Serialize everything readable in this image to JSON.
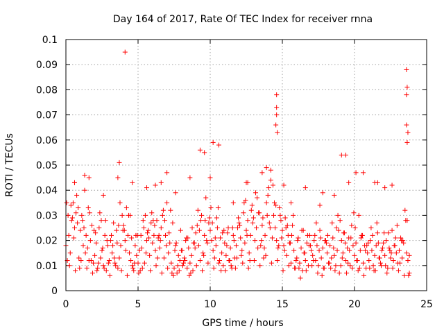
{
  "chart_data": {
    "type": "scatter",
    "title": "Day 164 of 2017, Rate Of TEC Index for receiver rnna",
    "xlabel": "GPS time / hours",
    "ylabel": "ROTI / TECUs",
    "xlim": [
      0,
      25
    ],
    "ylim": [
      0,
      0.1
    ],
    "xticks": [
      0,
      5,
      10,
      15,
      20,
      25
    ],
    "xtick_labels": [
      "0",
      "5",
      "10",
      "15",
      "20",
      "25"
    ],
    "yticks": [
      0,
      0.01,
      0.02,
      0.03,
      0.04,
      0.05,
      0.06,
      0.07,
      0.08,
      0.09,
      0.1
    ],
    "ytick_labels": [
      "0",
      "0.01",
      "0.02",
      "0.03",
      "0.04",
      "0.05",
      "0.06",
      "0.07",
      "0.08",
      "0.09",
      "0.1"
    ],
    "grid": true,
    "marker": "+",
    "color": "#ff0000",
    "series": [
      {
        "x": [
          0.0,
          0.1,
          0.2,
          0.3,
          0.4,
          0.5,
          0.6,
          0.7,
          0.8,
          0.9,
          1.0,
          1.1,
          1.2,
          1.3,
          1.4,
          1.5,
          1.6,
          1.7,
          1.8,
          1.9,
          2.0,
          2.1,
          2.2,
          2.3,
          2.4,
          2.5,
          2.6,
          2.7,
          2.8,
          2.9,
          3.0,
          3.1,
          3.2,
          3.3,
          3.4,
          3.5,
          3.6,
          3.7,
          3.8,
          3.9,
          4.0,
          4.1,
          4.2,
          4.3,
          4.4,
          4.5,
          4.6,
          4.7,
          4.8,
          4.9,
          5.0,
          5.1,
          5.2,
          5.3,
          5.4,
          5.5,
          5.6,
          5.7,
          5.8,
          5.9,
          6.0,
          6.1,
          6.2,
          6.3,
          6.4,
          6.5,
          6.6,
          6.7,
          6.8,
          6.9,
          7.0,
          7.1,
          7.2,
          7.3,
          7.4,
          7.5,
          7.6,
          7.7,
          7.8,
          7.9,
          8.0,
          8.1,
          8.2,
          8.3,
          8.4,
          8.5,
          8.6,
          8.7,
          8.8,
          8.9,
          9.0,
          9.1,
          9.2,
          9.3,
          9.4,
          9.5,
          9.6,
          9.7,
          9.8,
          9.9,
          10.0,
          10.1,
          10.2,
          10.3,
          10.4,
          10.5,
          10.6,
          10.7,
          10.8,
          10.9,
          11.0,
          11.1,
          11.2,
          11.3,
          11.4,
          11.5,
          11.6,
          11.7,
          11.8,
          11.9,
          12.0,
          12.1,
          12.2,
          12.3,
          12.4,
          12.5,
          12.6,
          12.7,
          12.8,
          12.9,
          13.0,
          13.1,
          13.2,
          13.3,
          13.4,
          13.5,
          13.6,
          13.7,
          13.8,
          13.9,
          14.0,
          14.1,
          14.2,
          14.3,
          14.4,
          14.5,
          14.6,
          14.7,
          14.8,
          14.9,
          15.0,
          15.1,
          15.2,
          15.3,
          15.4,
          15.5,
          15.6,
          15.7,
          15.8,
          15.9,
          16.0,
          16.1,
          16.2,
          16.3,
          16.4,
          16.5,
          16.6,
          16.7,
          16.8,
          16.9,
          17.0,
          17.1,
          17.2,
          17.3,
          17.4,
          17.5,
          17.6,
          17.7,
          17.8,
          17.9,
          18.0,
          18.1,
          18.2,
          18.3,
          18.4,
          18.5,
          18.6,
          18.7,
          18.8,
          18.9,
          19.0,
          19.1,
          19.2,
          19.3,
          19.4,
          19.5,
          19.6,
          19.7,
          19.8,
          19.9,
          20.0,
          20.1,
          20.2,
          20.3,
          20.4,
          20.5,
          20.6,
          20.7,
          20.8,
          20.9,
          21.0,
          21.1,
          21.2,
          21.3,
          21.4,
          21.5,
          21.6,
          21.7,
          21.8,
          21.9,
          22.0,
          22.1,
          22.2,
          22.3,
          22.4,
          22.5,
          22.6,
          22.7,
          22.8,
          22.9,
          23.0,
          23.1,
          23.2,
          23.3,
          23.4,
          23.5,
          23.6,
          23.7,
          23.8,
          0.15,
          0.35,
          0.55,
          0.75,
          0.95,
          1.15,
          1.35,
          1.55,
          1.75,
          1.95,
          2.15,
          2.35,
          2.55,
          2.75,
          2.95,
          3.15,
          3.35,
          3.55,
          3.75,
          3.95,
          4.15,
          4.35,
          4.55,
          4.75,
          4.95,
          5.15,
          5.35,
          5.55,
          5.75,
          5.95,
          6.15,
          6.35,
          6.55,
          6.75,
          6.95,
          7.15,
          7.35,
          7.55,
          7.75,
          7.95,
          8.15,
          8.35,
          8.55,
          8.75,
          8.95,
          9.15,
          9.35,
          9.55,
          9.75,
          9.95,
          10.15,
          10.35,
          10.55,
          10.75,
          10.95,
          11.15,
          11.35,
          11.55,
          11.75,
          11.95,
          12.15,
          12.35,
          12.55,
          12.75,
          12.95,
          13.15,
          13.35,
          13.55,
          13.75,
          13.95,
          14.15,
          14.35,
          14.55,
          14.75,
          14.95,
          15.15,
          15.35,
          15.55,
          15.75,
          15.95,
          16.15,
          16.35,
          16.55,
          16.75,
          16.95,
          17.15,
          17.35,
          17.55,
          17.75,
          17.95,
          18.15,
          18.35,
          18.55,
          18.75,
          18.95,
          19.15,
          19.35,
          19.55,
          19.75,
          19.95,
          20.15,
          20.35,
          20.55,
          20.75,
          20.95,
          21.15,
          21.35,
          21.55,
          21.75,
          21.95,
          22.15,
          22.35,
          22.55,
          22.75,
          22.95,
          23.15,
          23.35,
          23.55,
          23.75,
          0.25,
          0.65,
          1.05,
          1.45,
          1.85,
          2.25,
          2.65,
          3.05,
          3.45,
          3.85,
          4.25,
          4.65,
          5.05,
          5.45,
          5.85,
          6.25,
          6.65,
          7.05,
          7.45,
          7.85,
          8.25,
          8.65,
          9.05,
          9.45,
          9.85,
          10.25,
          10.65,
          11.05,
          11.45,
          11.85,
          12.25,
          12.65,
          13.05,
          13.45,
          13.85,
          14.25,
          14.65,
          15.05,
          15.45,
          15.85,
          16.25,
          16.65,
          17.05,
          17.45,
          17.85,
          18.25,
          18.65,
          19.05,
          19.45,
          19.85,
          20.25,
          20.65,
          21.05,
          21.45,
          21.85,
          22.25,
          22.65,
          23.05,
          23.45,
          23.8,
          0.05,
          0.45,
          0.85,
          1.25,
          1.65,
          2.05,
          2.45,
          2.85,
          3.25,
          3.65,
          4.05,
          4.45,
          4.85,
          5.25,
          5.65,
          6.05,
          6.45,
          6.85,
          7.25,
          7.65,
          8.05,
          8.45,
          8.85,
          9.25,
          9.65,
          10.05,
          10.45,
          10.85,
          11.25,
          11.65,
          12.05,
          12.45,
          12.85,
          13.25,
          13.65,
          14.05,
          14.45,
          14.85,
          15.25,
          15.65,
          16.05,
          16.45,
          16.85,
          17.25,
          17.65,
          18.05,
          18.45,
          18.85,
          19.25,
          19.65,
          20.05,
          20.45,
          20.85,
          21.25,
          21.65,
          22.05,
          22.45,
          22.85,
          23.25,
          23.65,
          0.6,
          1.6,
          2.6,
          3.6,
          4.6,
          5.6,
          6.6,
          7.6,
          8.6,
          9.6,
          10.6,
          11.6,
          12.6,
          13.6,
          14.6,
          15.6,
          16.6,
          17.6,
          18.6,
          19.6,
          20.6,
          21.6,
          22.6,
          23.6,
          4.1,
          23.6,
          23.65,
          14.6,
          14.55,
          14.6,
          14.65,
          9.3,
          10.0,
          10.2,
          3.7,
          19.1,
          19.4,
          23.6,
          23.65,
          23.7,
          7.0,
          6.2,
          1.3,
          0.6,
          12.5,
          13.9,
          14.2,
          15.1,
          17.8,
          21.4,
          22.1,
          20.1
        ],
        "y": [
          0.018,
          0.012,
          0.022,
          0.015,
          0.028,
          0.035,
          0.025,
          0.031,
          0.027,
          0.013,
          0.024,
          0.03,
          0.018,
          0.04,
          0.022,
          0.017,
          0.012,
          0.02,
          0.026,
          0.011,
          0.014,
          0.019,
          0.009,
          0.025,
          0.013,
          0.016,
          0.01,
          0.022,
          0.008,
          0.018,
          0.012,
          0.02,
          0.015,
          0.027,
          0.011,
          0.024,
          0.009,
          0.013,
          0.018,
          0.03,
          0.026,
          0.02,
          0.033,
          0.022,
          0.015,
          0.012,
          0.01,
          0.008,
          0.018,
          0.014,
          0.011,
          0.016,
          0.022,
          0.009,
          0.025,
          0.03,
          0.02,
          0.024,
          0.014,
          0.027,
          0.019,
          0.022,
          0.016,
          0.028,
          0.021,
          0.017,
          0.025,
          0.03,
          0.013,
          0.022,
          0.035,
          0.015,
          0.019,
          0.011,
          0.027,
          0.009,
          0.018,
          0.007,
          0.014,
          0.012,
          0.016,
          0.01,
          0.013,
          0.02,
          0.009,
          0.017,
          0.011,
          0.014,
          0.008,
          0.019,
          0.023,
          0.026,
          0.018,
          0.012,
          0.03,
          0.015,
          0.022,
          0.037,
          0.019,
          0.027,
          0.024,
          0.02,
          0.016,
          0.013,
          0.018,
          0.025,
          0.011,
          0.021,
          0.015,
          0.01,
          0.019,
          0.014,
          0.023,
          0.012,
          0.017,
          0.009,
          0.022,
          0.013,
          0.018,
          0.025,
          0.027,
          0.021,
          0.016,
          0.031,
          0.019,
          0.024,
          0.028,
          0.015,
          0.022,
          0.034,
          0.029,
          0.02,
          0.025,
          0.017,
          0.031,
          0.018,
          0.026,
          0.013,
          0.022,
          0.035,
          0.038,
          0.027,
          0.044,
          0.021,
          0.03,
          0.025,
          0.02,
          0.017,
          0.033,
          0.028,
          0.024,
          0.018,
          0.029,
          0.014,
          0.022,
          0.019,
          0.011,
          0.026,
          0.016,
          0.009,
          0.013,
          0.021,
          0.011,
          0.017,
          0.008,
          0.015,
          0.012,
          0.019,
          0.01,
          0.022,
          0.016,
          0.014,
          0.02,
          0.012,
          0.018,
          0.01,
          0.024,
          0.013,
          0.017,
          0.009,
          0.02,
          0.015,
          0.011,
          0.018,
          0.013,
          0.021,
          0.014,
          0.01,
          0.016,
          0.024,
          0.028,
          0.02,
          0.015,
          0.023,
          0.012,
          0.017,
          0.021,
          0.01,
          0.026,
          0.018,
          0.014,
          0.019,
          0.012,
          0.03,
          0.016,
          0.022,
          0.011,
          0.018,
          0.009,
          0.015,
          0.012,
          0.02,
          0.016,
          0.01,
          0.014,
          0.018,
          0.023,
          0.013,
          0.011,
          0.016,
          0.019,
          0.014,
          0.02,
          0.009,
          0.017,
          0.013,
          0.024,
          0.012,
          0.018,
          0.015,
          0.011,
          0.016,
          0.021,
          0.013,
          0.019,
          0.032,
          0.015,
          0.012,
          0.014,
          0.03,
          0.034,
          0.021,
          0.038,
          0.009,
          0.028,
          0.015,
          0.033,
          0.012,
          0.024,
          0.008,
          0.031,
          0.017,
          0.028,
          0.011,
          0.022,
          0.013,
          0.019,
          0.035,
          0.024,
          0.016,
          0.03,
          0.021,
          0.011,
          0.022,
          0.008,
          0.028,
          0.015,
          0.021,
          0.031,
          0.026,
          0.013,
          0.02,
          0.032,
          0.018,
          0.023,
          0.007,
          0.016,
          0.01,
          0.024,
          0.011,
          0.021,
          0.006,
          0.025,
          0.017,
          0.032,
          0.028,
          0.014,
          0.02,
          0.029,
          0.027,
          0.021,
          0.033,
          0.008,
          0.024,
          0.018,
          0.012,
          0.025,
          0.009,
          0.029,
          0.014,
          0.035,
          0.022,
          0.012,
          0.027,
          0.039,
          0.031,
          0.02,
          0.017,
          0.03,
          0.025,
          0.042,
          0.034,
          0.018,
          0.021,
          0.016,
          0.026,
          0.019,
          0.03,
          0.012,
          0.009,
          0.024,
          0.015,
          0.022,
          0.018,
          0.012,
          0.027,
          0.016,
          0.006,
          0.02,
          0.022,
          0.009,
          0.017,
          0.025,
          0.007,
          0.013,
          0.019,
          0.011,
          0.021,
          0.031,
          0.012,
          0.009,
          0.022,
          0.016,
          0.019,
          0.025,
          0.008,
          0.027,
          0.013,
          0.017,
          0.01,
          0.023,
          0.015,
          0.018,
          0.026,
          0.011,
          0.02,
          0.028,
          0.006,
          0.01,
          0.008,
          0.012,
          0.009,
          0.007,
          0.011,
          0.009,
          0.006,
          0.01,
          0.008,
          0.006,
          0.009,
          0.007,
          0.011,
          0.008,
          0.01,
          0.007,
          0.009,
          0.006,
          0.008,
          0.012,
          0.007,
          0.01,
          0.008,
          0.011,
          0.009,
          0.012,
          0.008,
          0.01,
          0.013,
          0.011,
          0.009,
          0.012,
          0.01,
          0.014,
          0.011,
          0.012,
          0.008,
          0.01,
          0.009,
          0.005,
          0.008,
          0.01,
          0.007,
          0.009,
          0.011,
          0.008,
          0.01,
          0.007,
          0.009,
          0.008,
          0.006,
          0.009,
          0.008,
          0.01,
          0.007,
          0.009,
          0.008,
          0.006,
          0.007,
          0.035,
          0.029,
          0.033,
          0.025,
          0.031,
          0.023,
          0.028,
          0.02,
          0.018,
          0.026,
          0.024,
          0.03,
          0.022,
          0.017,
          0.023,
          0.028,
          0.022,
          0.028,
          0.032,
          0.019,
          0.016,
          0.021,
          0.019,
          0.024,
          0.028,
          0.033,
          0.029,
          0.023,
          0.025,
          0.02,
          0.026,
          0.036,
          0.032,
          0.037,
          0.029,
          0.041,
          0.035,
          0.03,
          0.025,
          0.022,
          0.02,
          0.024,
          0.018,
          0.022,
          0.021,
          0.019,
          0.027,
          0.03,
          0.023,
          0.016,
          0.025,
          0.021,
          0.018,
          0.022,
          0.019,
          0.023,
          0.016,
          0.021,
          0.02,
          0.028,
          0.043,
          0.045,
          0.038,
          0.045,
          0.043,
          0.041,
          0.043,
          0.039,
          0.045,
          0.055,
          0.058,
          0.035,
          0.043,
          0.047,
          0.073,
          0.035,
          0.041,
          0.034,
          0.038,
          0.043,
          0.047,
          0.043,
          0.042,
          0.066,
          0.095,
          0.088,
          0.081,
          0.078,
          0.066,
          0.07,
          0.063,
          0.056,
          0.045,
          0.059,
          0.051,
          0.054,
          0.054,
          0.078,
          0.059,
          0.063,
          0.047,
          0.042,
          0.046,
          0.043,
          0.043,
          0.049,
          0.048,
          0.042,
          0.039,
          0.043,
          0.041,
          0.047
        ]
      }
    ]
  }
}
